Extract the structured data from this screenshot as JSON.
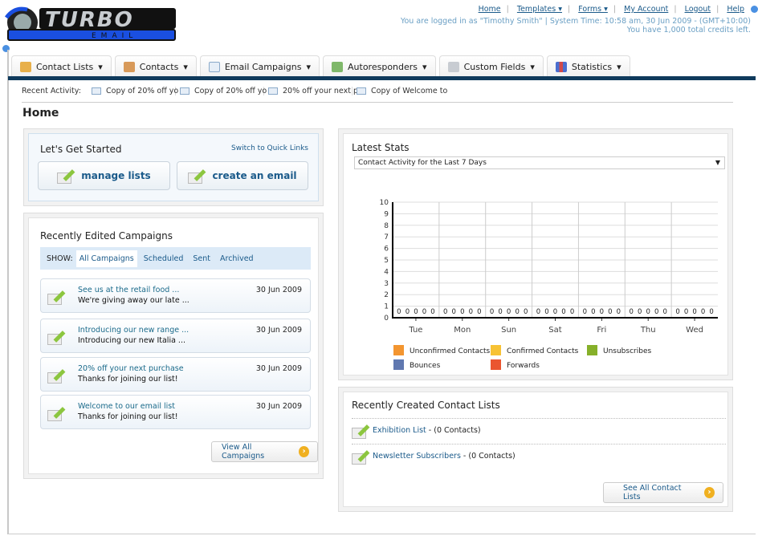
{
  "logo": {
    "text": "TURBO EMAIL"
  },
  "top_links": [
    {
      "label": "Home"
    },
    {
      "label": "Templates ▾"
    },
    {
      "label": "Forms ▾"
    },
    {
      "label": "My Account"
    },
    {
      "label": "Logout"
    },
    {
      "label": "Help"
    }
  ],
  "user_info": {
    "line1": "You are logged in as \"Timothy Smith\" | System Time: 10:58 am, 30 Jun 2009 - (GMT+10:00)",
    "line2": "You have 1,000 total credits left."
  },
  "nav": [
    {
      "label": "Contact Lists",
      "icon": "contact-lists-icon",
      "color": "#e8b04a"
    },
    {
      "label": "Contacts",
      "icon": "contacts-icon",
      "color": "#d89a5a"
    },
    {
      "label": "Email Campaigns",
      "icon": "envelope-icon",
      "color": "#b8cde2"
    },
    {
      "label": "Autoresponders",
      "icon": "autoresponder-icon",
      "color": "#7fb86a"
    },
    {
      "label": "Custom Fields",
      "icon": "custom-fields-icon",
      "color": "#c8ccd2"
    },
    {
      "label": "Statistics",
      "icon": "statistics-icon",
      "color": "#4a6fd0"
    }
  ],
  "recent_activity": {
    "label": "Recent Activity:",
    "items": [
      "Copy of 20% off yo",
      "Copy of 20% off yo",
      "20% off your next p",
      "Copy of Welcome to"
    ]
  },
  "page_title": "Home",
  "get_started": {
    "title": "Let's Get Started",
    "switch_link": "Switch to Quick Links",
    "manage_lists": "manage lists",
    "create_email": "create an email"
  },
  "campaigns": {
    "title": "Recently Edited Campaigns",
    "show_label": "SHOW:",
    "filters": [
      "All Campaigns",
      "Scheduled",
      "Sent",
      "Archived"
    ],
    "items": [
      {
        "title": "See us at the retail food ...",
        "subtitle": "We're giving away our late ...",
        "date": "30 Jun 2009"
      },
      {
        "title": "Introducing our new range ...",
        "subtitle": "Introducing our new Italia ...",
        "date": "30 Jun 2009"
      },
      {
        "title": "20% off your next purchase",
        "subtitle": "Thanks for joining our list!",
        "date": "30 Jun 2009"
      },
      {
        "title": "Welcome to our email list",
        "subtitle": "Thanks for joining our list!",
        "date": "30 Jun 2009"
      }
    ],
    "view_all": "View All Campaigns"
  },
  "stats": {
    "title": "Latest Stats",
    "select_value": "Contact Activity for the Last 7 Days"
  },
  "chart_data": {
    "type": "bar",
    "categories": [
      "Tue",
      "Mon",
      "Sun",
      "Sat",
      "Fri",
      "Thu",
      "Wed"
    ],
    "series": [
      {
        "name": "Unconfirmed Contacts",
        "color": "#f39530",
        "values": [
          0,
          0,
          0,
          0,
          0,
          0,
          0
        ]
      },
      {
        "name": "Confirmed Contacts",
        "color": "#f7c234",
        "values": [
          0,
          0,
          0,
          0,
          0,
          0,
          0
        ]
      },
      {
        "name": "Unsubscribes",
        "color": "#86b02a",
        "values": [
          0,
          0,
          0,
          0,
          0,
          0,
          0
        ]
      },
      {
        "name": "Bounces",
        "color": "#6078b0",
        "values": [
          0,
          0,
          0,
          0,
          0,
          0,
          0
        ]
      },
      {
        "name": "Forwards",
        "color": "#ea5530",
        "values": [
          0,
          0,
          0,
          0,
          0,
          0,
          0
        ]
      }
    ],
    "ylim": [
      0,
      10
    ],
    "yticks": [
      0,
      1,
      2,
      3,
      4,
      5,
      6,
      7,
      8,
      9,
      10
    ],
    "grid": true,
    "legend": "bottom"
  },
  "contact_lists": {
    "title": "Recently Created Contact Lists",
    "items": [
      {
        "name": "Exhibition List",
        "count": " - (0 Contacts)"
      },
      {
        "name": "Newsletter Subscribers",
        "count": " - (0 Contacts)"
      }
    ],
    "see_all": "See All Contact Lists"
  }
}
